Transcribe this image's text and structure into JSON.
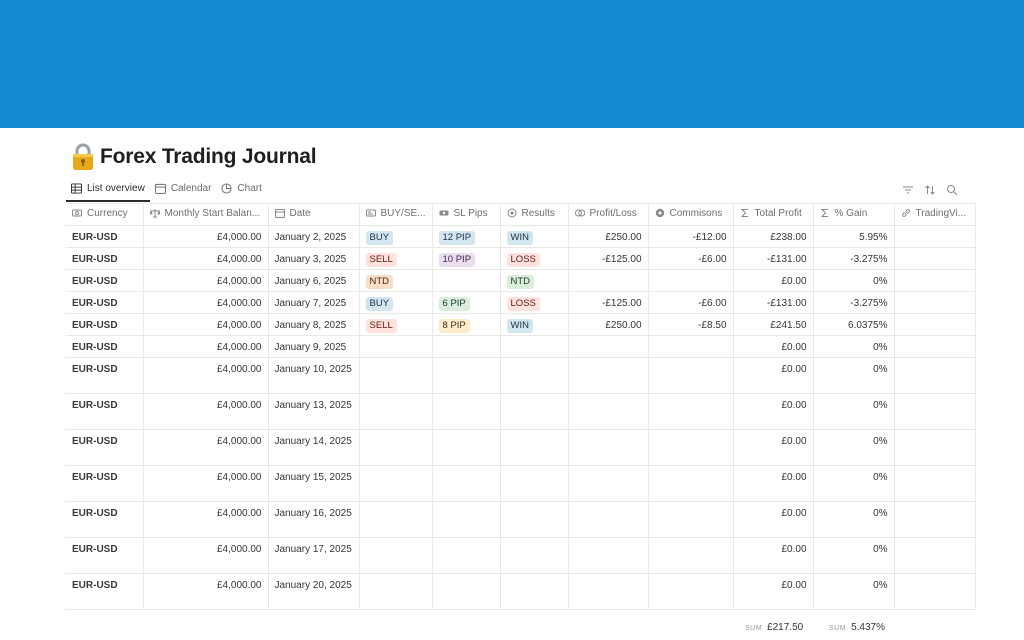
{
  "page": {
    "title": "Forex Trading Journal",
    "icon": "padlock-icon",
    "cover_color": "#1289d0"
  },
  "views": [
    {
      "label": "List overview",
      "icon": "table-icon",
      "active": true
    },
    {
      "label": "Calendar",
      "icon": "calendar-icon",
      "active": false
    },
    {
      "label": "Chart",
      "icon": "chart-icon",
      "active": false
    }
  ],
  "toolbar": {
    "icons": [
      "filter-icon",
      "sort-icon",
      "search-icon"
    ]
  },
  "columns": [
    {
      "label": "Currency",
      "icon": "currency-icon"
    },
    {
      "label": "Monthly Start Balan...",
      "icon": "balance-icon"
    },
    {
      "label": "Date",
      "icon": "calendar-icon"
    },
    {
      "label": "BUY/SE...",
      "icon": "select-icon"
    },
    {
      "label": "SL Pips",
      "icon": "ticket-icon"
    },
    {
      "label": "Results",
      "icon": "status-icon"
    },
    {
      "label": "Profit/Loss",
      "icon": "coins-icon"
    },
    {
      "label": "Commisons",
      "icon": "money-icon"
    },
    {
      "label": "Total Profit",
      "icon": "sigma-icon"
    },
    {
      "label": "% Gain",
      "icon": "sigma-icon"
    },
    {
      "label": "TradingVi...",
      "icon": "link-icon"
    }
  ],
  "rows": [
    {
      "currency": "EUR-USD",
      "balance": "£4,000.00",
      "date": "January 2, 2025",
      "side": "BUY",
      "pips": "12 PIP",
      "result": "WIN",
      "pl": "£250.00",
      "comm": "-£12.00",
      "total": "£238.00",
      "gain": "5.95%"
    },
    {
      "currency": "EUR-USD",
      "balance": "£4,000.00",
      "date": "January 3, 2025",
      "side": "SELL",
      "pips": "10 PIP",
      "result": "LOSS",
      "pl": "-£125.00",
      "comm": "-£6.00",
      "total": "-£131.00",
      "gain": "-3.275%"
    },
    {
      "currency": "EUR-USD",
      "balance": "£4,000.00",
      "date": "January 6, 2025",
      "side": "NTD",
      "pips": "",
      "result": "NTD",
      "pl": "",
      "comm": "",
      "total": "£0.00",
      "gain": "0%"
    },
    {
      "currency": "EUR-USD",
      "balance": "£4,000.00",
      "date": "January 7, 2025",
      "side": "BUY",
      "pips": "6 PIP",
      "result": "LOSS",
      "pl": "-£125.00",
      "comm": "-£6.00",
      "total": "-£131.00",
      "gain": "-3.275%"
    },
    {
      "currency": "EUR-USD",
      "balance": "£4,000.00",
      "date": "January 8, 2025",
      "side": "SELL",
      "pips": "8 PIP",
      "result": "WIN",
      "pl": "£250.00",
      "comm": "-£8.50",
      "total": "£241.50",
      "gain": "6.0375%"
    },
    {
      "currency": "EUR-USD",
      "balance": "£4,000.00",
      "date": "January 9, 2025",
      "side": "",
      "pips": "",
      "result": "",
      "pl": "",
      "comm": "",
      "total": "£0.00",
      "gain": "0%"
    },
    {
      "currency": "EUR-USD",
      "balance": "£4,000.00",
      "date": "January 10, 2025",
      "side": "",
      "pips": "",
      "result": "",
      "pl": "",
      "comm": "",
      "total": "£0.00",
      "gain": "0%"
    },
    {
      "currency": "EUR-USD",
      "balance": "£4,000.00",
      "date": "January 13, 2025",
      "side": "",
      "pips": "",
      "result": "",
      "pl": "",
      "comm": "",
      "total": "£0.00",
      "gain": "0%"
    },
    {
      "currency": "EUR-USD",
      "balance": "£4,000.00",
      "date": "January 14, 2025",
      "side": "",
      "pips": "",
      "result": "",
      "pl": "",
      "comm": "",
      "total": "£0.00",
      "gain": "0%"
    },
    {
      "currency": "EUR-USD",
      "balance": "£4,000.00",
      "date": "January 15, 2025",
      "side": "",
      "pips": "",
      "result": "",
      "pl": "",
      "comm": "",
      "total": "£0.00",
      "gain": "0%"
    },
    {
      "currency": "EUR-USD",
      "balance": "£4,000.00",
      "date": "January 16, 2025",
      "side": "",
      "pips": "",
      "result": "",
      "pl": "",
      "comm": "",
      "total": "£0.00",
      "gain": "0%"
    },
    {
      "currency": "EUR-USD",
      "balance": "£4,000.00",
      "date": "January 17, 2025",
      "side": "",
      "pips": "",
      "result": "",
      "pl": "",
      "comm": "",
      "total": "£0.00",
      "gain": "0%"
    },
    {
      "currency": "EUR-USD",
      "balance": "£4,000.00",
      "date": "January 20, 2025",
      "side": "",
      "pips": "",
      "result": "",
      "pl": "",
      "comm": "",
      "total": "£0.00",
      "gain": "0%"
    }
  ],
  "footer": {
    "sum_label": "SUM",
    "total_sum": "£217.50",
    "gain_sum": "5.437%"
  }
}
